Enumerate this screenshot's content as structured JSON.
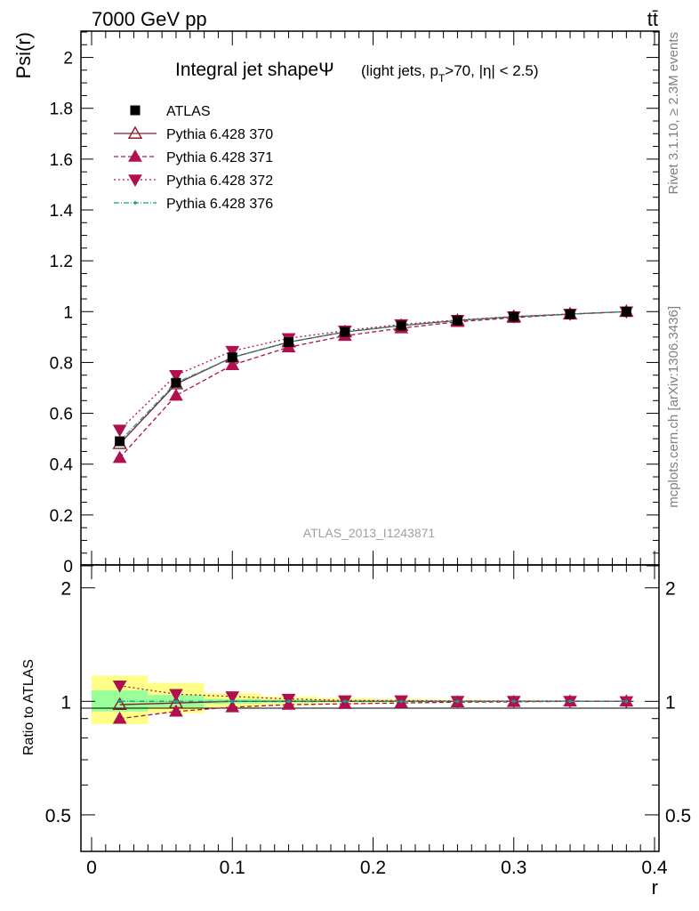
{
  "header": {
    "left": "7000 GeV pp",
    "right": "tt̄"
  },
  "side_labels": {
    "rivet": "Rivet 3.1.10, ≥ 2.3M events",
    "mcplots": "mcplots.cern.ch [arXiv:1306.3436]"
  },
  "chart_data": {
    "type": "line",
    "title": "Integral jet shapeΨ",
    "title_suffix_parts": [
      "(light jets, p",
      "T",
      ">70, |η| < 2.5)"
    ],
    "watermark": "ATLAS_2013_I1243871",
    "xlabel": "r",
    "ylabel": "Psi(r)",
    "ratio_ylabel": "Ratio to ATLAS",
    "xlim": [
      0,
      0.4
    ],
    "ylim": [
      0,
      2.1
    ],
    "ratio_ylim": [
      0.4,
      2.3
    ],
    "ratio_log_scale": true,
    "x_ticks": [
      "0",
      "0.1",
      "0.2",
      "0.3",
      "0.4"
    ],
    "y_ticks": [
      "0",
      "0.2",
      "0.4",
      "0.6",
      "0.8",
      "1",
      "1.2",
      "1.4",
      "1.6",
      "1.8",
      "2"
    ],
    "ratio_ticks": [
      "0.5",
      "1",
      "2"
    ],
    "legend_position": "top-left",
    "x": [
      0.02,
      0.06,
      0.1,
      0.14,
      0.18,
      0.22,
      0.26,
      0.3,
      0.34,
      0.38
    ],
    "data": {
      "name": "ATLAS",
      "values": [
        0.49,
        0.72,
        0.82,
        0.88,
        0.92,
        0.945,
        0.965,
        0.98,
        0.99,
        1.0
      ],
      "color": "#000000"
    },
    "series": [
      {
        "name": "Pythia 6.428 370",
        "color": "#8b1a2a",
        "dash": "",
        "marker": "triangle-up-open",
        "values": [
          0.48,
          0.715,
          0.82,
          0.88,
          0.92,
          0.945,
          0.965,
          0.98,
          0.99,
          1.0
        ]
      },
      {
        "name": "Pythia 6.428 371",
        "color": "#b0104f",
        "dash": "5,3",
        "marker": "triangle-up",
        "values": [
          0.425,
          0.67,
          0.79,
          0.86,
          0.905,
          0.935,
          0.96,
          0.976,
          0.99,
          1.0
        ]
      },
      {
        "name": "Pythia 6.428 372",
        "color": "#b0104f",
        "dash": "2,3",
        "marker": "triangle-down",
        "values": [
          0.535,
          0.75,
          0.845,
          0.895,
          0.925,
          0.95,
          0.967,
          0.981,
          0.991,
          1.0
        ]
      },
      {
        "name": "Pythia 6.428 376",
        "color": "#14a085",
        "dash": "6,2,1,2",
        "marker": "dot",
        "values": [
          0.49,
          0.72,
          0.82,
          0.88,
          0.92,
          0.945,
          0.965,
          0.98,
          0.99,
          1.0
        ]
      }
    ],
    "ratio_series": [
      {
        "name": "Pythia 6.428 370",
        "values": [
          0.98,
          0.99,
          1.0,
          1.0,
          1.0,
          1.0,
          1.0,
          1.0,
          1.0,
          1.0
        ]
      },
      {
        "name": "Pythia 6.428 371",
        "values": [
          0.9,
          0.94,
          0.965,
          0.98,
          0.985,
          0.99,
          0.995,
          0.997,
          1.0,
          1.0
        ]
      },
      {
        "name": "Pythia 6.428 372",
        "values": [
          1.1,
          1.045,
          1.03,
          1.015,
          1.005,
          1.005,
          1.002,
          1.002,
          1.002,
          1.0
        ]
      },
      {
        "name": "Pythia 6.428 376",
        "values": [
          1.0,
          1.0,
          1.0,
          1.0,
          1.0,
          1.0,
          1.0,
          1.0,
          1.0,
          1.0
        ]
      }
    ],
    "uncertainty_bands": [
      {
        "x_range": [
          0.0,
          0.04
        ],
        "stat": [
          0.94,
          1.07
        ],
        "total": [
          0.87,
          1.17
        ]
      },
      {
        "x_range": [
          0.04,
          0.08
        ],
        "stat": [
          0.965,
          1.04
        ],
        "total": [
          0.93,
          1.12
        ]
      },
      {
        "x_range": [
          0.08,
          0.12
        ],
        "stat": [
          0.985,
          1.015
        ],
        "total": [
          0.96,
          1.05
        ]
      },
      {
        "x_range": [
          0.12,
          0.16
        ],
        "stat": [
          0.99,
          1.01
        ],
        "total": [
          0.975,
          1.03
        ]
      },
      {
        "x_range": [
          0.16,
          0.2
        ],
        "stat": [
          0.995,
          1.005
        ],
        "total": [
          0.985,
          1.02
        ]
      },
      {
        "x_range": [
          0.2,
          0.24
        ],
        "stat": [
          0.995,
          1.005
        ],
        "total": [
          0.99,
          1.015
        ]
      },
      {
        "x_range": [
          0.24,
          0.28
        ],
        "stat": [
          0.997,
          1.003
        ],
        "total": [
          0.992,
          1.01
        ]
      },
      {
        "x_range": [
          0.28,
          0.32
        ],
        "stat": [
          0.998,
          1.002
        ],
        "total": [
          0.995,
          1.006
        ]
      },
      {
        "x_range": [
          0.32,
          0.36
        ],
        "stat": [
          0.999,
          1.001
        ],
        "total": [
          0.997,
          1.003
        ]
      },
      {
        "x_range": [
          0.36,
          0.4
        ],
        "stat": [
          0.999,
          1.001
        ],
        "total": [
          0.999,
          1.001
        ]
      }
    ],
    "band_colors": {
      "stat": "#99ff99",
      "total": "#ffff88"
    }
  }
}
